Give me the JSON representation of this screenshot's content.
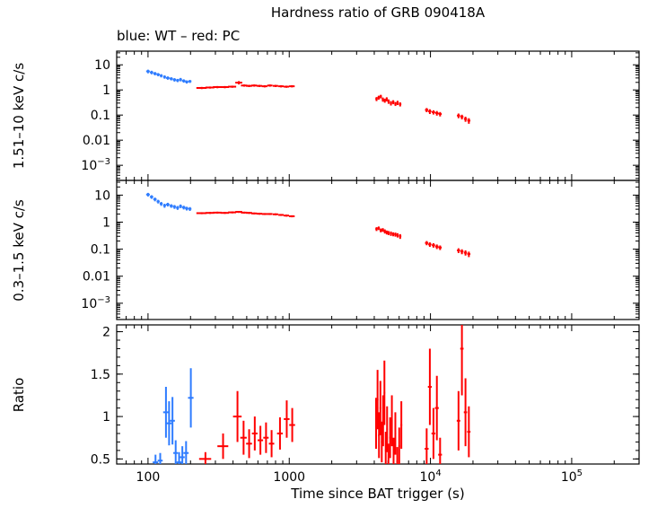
{
  "figure": {
    "title": "Hardness ratio of GRB 090418A",
    "legend_note": "blue: WT – red: PC",
    "xlabel": "Time since BAT trigger (s)"
  },
  "colors": {
    "background": "#ffffff",
    "axis": "#000000",
    "wt": "#2e7cff",
    "pc": "#ff0000"
  },
  "axes": {
    "x": {
      "scale": "log",
      "min": 60,
      "max": 300000,
      "ticks": [
        {
          "v": 100,
          "label": "100"
        },
        {
          "v": 1000,
          "label": "1000"
        },
        {
          "v": 10000,
          "label": "10^4"
        },
        {
          "v": 100000,
          "label": "10^5"
        }
      ]
    },
    "y_log_ticks": [
      {
        "v": 10,
        "label": "10"
      },
      {
        "v": 1,
        "label": "1"
      },
      {
        "v": 0.1,
        "label": "0.1"
      },
      {
        "v": 0.01,
        "label": "0.01"
      },
      {
        "v": 0.001,
        "label": "10^−3"
      }
    ],
    "y_ratio_ticks": [
      {
        "v": 2,
        "label": "2"
      },
      {
        "v": 1.5,
        "label": "1.5"
      },
      {
        "v": 1,
        "label": "1"
      },
      {
        "v": 0.5,
        "label": "0.5"
      }
    ]
  },
  "chart_data": [
    {
      "type": "scatter",
      "title": "Hardness ratio of GRB 090418A",
      "ylabel": "1.51–10 keV c/s",
      "yscale": "log",
      "ylim": [
        0.00025,
        35
      ],
      "xscale": "log",
      "xlim": [
        60,
        300000
      ],
      "legend": {
        "WT": "blue",
        "PC": "red"
      },
      "point_format": "[t_s, t_err_s, rate_cps, rate_err_cps]",
      "series": [
        {
          "name": "WT",
          "color": "wt",
          "points": [
            [
              100,
              3,
              5.5,
              0.9
            ],
            [
              106,
              3,
              5.0,
              0.8
            ],
            [
              112,
              3,
              4.5,
              0.7
            ],
            [
              118,
              3,
              4.1,
              0.6
            ],
            [
              124,
              3,
              3.7,
              0.55
            ],
            [
              131,
              3,
              3.3,
              0.5
            ],
            [
              138,
              4,
              3.0,
              0.45
            ],
            [
              146,
              4,
              2.8,
              0.4
            ],
            [
              154,
              4,
              2.55,
              0.4
            ],
            [
              162,
              4,
              2.4,
              0.35
            ],
            [
              170,
              4,
              2.6,
              0.4
            ],
            [
              179,
              5,
              2.3,
              0.35
            ],
            [
              188,
              5,
              2.1,
              0.3
            ],
            [
              198,
              5,
              2.2,
              0.3
            ]
          ]
        },
        {
          "name": "PC",
          "color": "pc",
          "points": [
            [
              240,
              20,
              1.2,
              0.12
            ],
            [
              275,
              20,
              1.25,
              0.12
            ],
            [
              310,
              22,
              1.3,
              0.13
            ],
            [
              350,
              24,
              1.3,
              0.13
            ],
            [
              395,
              26,
              1.35,
              0.13
            ],
            [
              440,
              25,
              1.95,
              0.3
            ],
            [
              480,
              25,
              1.5,
              0.15
            ],
            [
              520,
              26,
              1.45,
              0.15
            ],
            [
              565,
              27,
              1.5,
              0.15
            ],
            [
              615,
              28,
              1.45,
              0.14
            ],
            [
              670,
              30,
              1.4,
              0.14
            ],
            [
              730,
              32,
              1.5,
              0.15
            ],
            [
              800,
              35,
              1.45,
              0.14
            ],
            [
              875,
              38,
              1.4,
              0.14
            ],
            [
              955,
              42,
              1.35,
              0.13
            ],
            [
              1045,
              48,
              1.4,
              0.14
            ],
            [
              4150,
              80,
              0.44,
              0.08
            ],
            [
              4300,
              80,
              0.5,
              0.09
            ],
            [
              4450,
              80,
              0.55,
              0.09
            ],
            [
              4600,
              80,
              0.42,
              0.08
            ],
            [
              4750,
              80,
              0.38,
              0.07
            ],
            [
              4900,
              80,
              0.43,
              0.08
            ],
            [
              5050,
              85,
              0.35,
              0.07
            ],
            [
              5250,
              95,
              0.3,
              0.06
            ],
            [
              5450,
              95,
              0.33,
              0.06
            ],
            [
              5650,
              100,
              0.28,
              0.05
            ],
            [
              5850,
              105,
              0.31,
              0.06
            ],
            [
              6100,
              120,
              0.27,
              0.05
            ],
            [
              9400,
              250,
              0.16,
              0.03
            ],
            [
              9900,
              260,
              0.14,
              0.03
            ],
            [
              10500,
              280,
              0.13,
              0.025
            ],
            [
              11100,
              300,
              0.12,
              0.025
            ],
            [
              11700,
              310,
              0.11,
              0.022
            ],
            [
              15800,
              400,
              0.095,
              0.02
            ],
            [
              16700,
              420,
              0.085,
              0.018
            ],
            [
              17700,
              450,
              0.07,
              0.016
            ],
            [
              18700,
              470,
              0.06,
              0.015
            ]
          ]
        }
      ]
    },
    {
      "type": "scatter",
      "ylabel": "0.3–1.5 keV c/s",
      "yscale": "log",
      "ylim": [
        0.00025,
        35
      ],
      "xscale": "log",
      "xlim": [
        60,
        300000
      ],
      "point_format": "[t_s, t_err_s, rate_cps, rate_err_cps]",
      "series": [
        {
          "name": "WT",
          "color": "wt",
          "points": [
            [
              100,
              3,
              10.5,
              1.6
            ],
            [
              106,
              3,
              8.6,
              1.3
            ],
            [
              112,
              3,
              7.0,
              1.1
            ],
            [
              118,
              3,
              5.8,
              0.9
            ],
            [
              124,
              3,
              4.8,
              0.8
            ],
            [
              131,
              3,
              4.1,
              0.7
            ],
            [
              138,
              4,
              4.5,
              0.7
            ],
            [
              146,
              4,
              4.0,
              0.6
            ],
            [
              154,
              4,
              3.7,
              0.6
            ],
            [
              162,
              4,
              3.4,
              0.55
            ],
            [
              170,
              4,
              3.9,
              0.6
            ],
            [
              179,
              5,
              3.5,
              0.55
            ],
            [
              188,
              5,
              3.2,
              0.5
            ],
            [
              198,
              5,
              3.1,
              0.5
            ]
          ]
        },
        {
          "name": "PC",
          "color": "pc",
          "points": [
            [
              240,
              20,
              2.15,
              0.18
            ],
            [
              275,
              20,
              2.2,
              0.18
            ],
            [
              310,
              22,
              2.25,
              0.19
            ],
            [
              350,
              24,
              2.2,
              0.18
            ],
            [
              395,
              26,
              2.3,
              0.19
            ],
            [
              440,
              25,
              2.4,
              0.2
            ],
            [
              480,
              25,
              2.25,
              0.19
            ],
            [
              520,
              26,
              2.2,
              0.18
            ],
            [
              565,
              27,
              2.1,
              0.17
            ],
            [
              615,
              28,
              2.05,
              0.17
            ],
            [
              670,
              30,
              2.0,
              0.16
            ],
            [
              730,
              32,
              2.0,
              0.16
            ],
            [
              800,
              35,
              1.95,
              0.16
            ],
            [
              875,
              38,
              1.85,
              0.15
            ],
            [
              955,
              42,
              1.75,
              0.15
            ],
            [
              1045,
              48,
              1.65,
              0.14
            ],
            [
              4150,
              80,
              0.56,
              0.09
            ],
            [
              4300,
              80,
              0.6,
              0.09
            ],
            [
              4450,
              80,
              0.5,
              0.08
            ],
            [
              4600,
              80,
              0.52,
              0.08
            ],
            [
              4750,
              80,
              0.46,
              0.08
            ],
            [
              4900,
              80,
              0.42,
              0.07
            ],
            [
              5050,
              85,
              0.4,
              0.07
            ],
            [
              5250,
              95,
              0.38,
              0.07
            ],
            [
              5450,
              95,
              0.36,
              0.06
            ],
            [
              5650,
              100,
              0.35,
              0.06
            ],
            [
              5850,
              105,
              0.33,
              0.06
            ],
            [
              6100,
              120,
              0.3,
              0.06
            ],
            [
              9400,
              250,
              0.17,
              0.03
            ],
            [
              9900,
              260,
              0.15,
              0.028
            ],
            [
              10500,
              280,
              0.14,
              0.026
            ],
            [
              11100,
              300,
              0.125,
              0.024
            ],
            [
              11700,
              310,
              0.115,
              0.022
            ],
            [
              15800,
              400,
              0.09,
              0.018
            ],
            [
              16700,
              420,
              0.082,
              0.017
            ],
            [
              17700,
              450,
              0.074,
              0.016
            ],
            [
              18700,
              470,
              0.066,
              0.015
            ]
          ]
        }
      ]
    },
    {
      "type": "scatter",
      "ylabel": "Ratio",
      "yscale": "linear",
      "ylim": [
        0.44,
        2.08
      ],
      "xscale": "log",
      "xlim": [
        60,
        300000
      ],
      "xlabel": "Time since BAT trigger (s)",
      "point_format": "[t_s, t_err_s, ratio, ratio_err]",
      "series": [
        {
          "name": "WT",
          "color": "wt",
          "points": [
            [
              113,
              5,
              0.46,
              0.09
            ],
            [
              122,
              5,
              0.48,
              0.09
            ],
            [
              134,
              6,
              1.05,
              0.3
            ],
            [
              141,
              6,
              0.92,
              0.26
            ],
            [
              149,
              6,
              0.95,
              0.28
            ],
            [
              157,
              6,
              0.57,
              0.15
            ],
            [
              166,
              7,
              0.46,
              0.12
            ],
            [
              175,
              7,
              0.52,
              0.13
            ],
            [
              186,
              8,
              0.57,
              0.14
            ],
            [
              201,
              9,
              1.22,
              0.35
            ]
          ]
        },
        {
          "name": "PC",
          "color": "pc",
          "points": [
            [
              255,
              25,
              0.5,
              0.08
            ],
            [
              340,
              30,
              0.65,
              0.15
            ],
            [
              430,
              30,
              1.0,
              0.3
            ],
            [
              475,
              25,
              0.75,
              0.2
            ],
            [
              520,
              25,
              0.68,
              0.17
            ],
            [
              570,
              26,
              0.8,
              0.2
            ],
            [
              625,
              28,
              0.72,
              0.17
            ],
            [
              685,
              30,
              0.75,
              0.18
            ],
            [
              750,
              33,
              0.68,
              0.16
            ],
            [
              860,
              40,
              0.8,
              0.19
            ],
            [
              960,
              45,
              0.97,
              0.22
            ],
            [
              1050,
              50,
              0.9,
              0.2
            ],
            [
              4120,
              60,
              0.92,
              0.3
            ],
            [
              4220,
              60,
              1.2,
              0.35
            ],
            [
              4320,
              60,
              0.78,
              0.27
            ],
            [
              4420,
              60,
              1.1,
              0.32
            ],
            [
              4520,
              60,
              0.7,
              0.24
            ],
            [
              4620,
              60,
              0.95,
              0.3
            ],
            [
              4720,
              60,
              1.28,
              0.38
            ],
            [
              4820,
              60,
              0.6,
              0.22
            ],
            [
              4930,
              60,
              0.85,
              0.27
            ],
            [
              5040,
              60,
              0.5,
              0.18
            ],
            [
              5180,
              70,
              0.75,
              0.24
            ],
            [
              5330,
              70,
              0.95,
              0.3
            ],
            [
              5480,
              70,
              0.55,
              0.2
            ],
            [
              5640,
              70,
              0.8,
              0.25
            ],
            [
              5820,
              80,
              0.47,
              0.17
            ],
            [
              6010,
              80,
              0.65,
              0.22
            ],
            [
              6220,
              90,
              0.9,
              0.28
            ],
            [
              9400,
              300,
              0.62,
              0.24
            ],
            [
              9900,
              310,
              1.35,
              0.45
            ],
            [
              10500,
              330,
              0.8,
              0.3
            ],
            [
              11100,
              350,
              1.1,
              0.38
            ],
            [
              11700,
              360,
              0.55,
              0.2
            ],
            [
              15800,
              450,
              0.95,
              0.35
            ],
            [
              16700,
              460,
              1.8,
              0.55
            ],
            [
              17700,
              480,
              1.05,
              0.4
            ],
            [
              18700,
              500,
              0.82,
              0.3
            ]
          ]
        }
      ]
    }
  ]
}
